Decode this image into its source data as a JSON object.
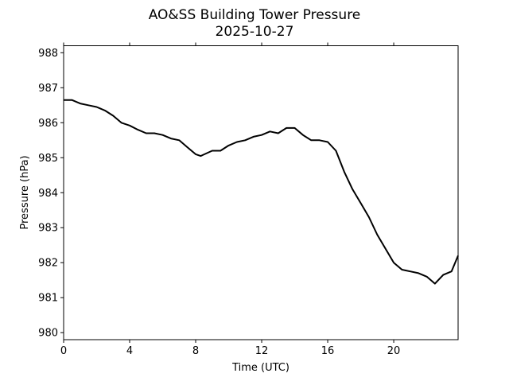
{
  "chart_data": {
    "type": "line",
    "title": "AO&SS Building Tower Pressure",
    "subtitle": "2025-10-27",
    "xlabel": "Time (UTC)",
    "ylabel": "Pressure (hPa)",
    "xlim": [
      0,
      23.9
    ],
    "ylim": [
      979.8,
      988.2
    ],
    "xticks": [
      0,
      4,
      8,
      12,
      16,
      20
    ],
    "yticks": [
      980,
      981,
      982,
      983,
      984,
      985,
      986,
      987,
      988
    ],
    "grid": false,
    "line_color": "#000000",
    "series": [
      {
        "name": "Pressure",
        "x": [
          0,
          0.5,
          1,
          1.5,
          2,
          2.5,
          3,
          3.5,
          4,
          4.5,
          5,
          5.5,
          6,
          6.5,
          7,
          7.5,
          8,
          8.3,
          9,
          9.5,
          10,
          10.5,
          11,
          11.5,
          12,
          12.5,
          13,
          13.5,
          14,
          14.5,
          15,
          15.5,
          16,
          16.5,
          17,
          17.5,
          18,
          18.5,
          19,
          19.5,
          20,
          20.5,
          21,
          21.5,
          22,
          22.5,
          23,
          23.5,
          23.9
        ],
        "y": [
          986.65,
          986.65,
          986.55,
          986.5,
          986.45,
          986.35,
          986.2,
          986.0,
          985.92,
          985.8,
          985.7,
          985.7,
          985.65,
          985.55,
          985.5,
          985.3,
          985.1,
          985.05,
          985.2,
          985.2,
          985.35,
          985.45,
          985.5,
          985.6,
          985.65,
          985.75,
          985.7,
          985.85,
          985.85,
          985.65,
          985.5,
          985.5,
          985.45,
          985.2,
          984.6,
          984.1,
          983.7,
          983.3,
          982.8,
          982.4,
          982.0,
          981.8,
          981.75,
          981.7,
          981.6,
          981.4,
          981.65,
          981.75,
          982.2
        ]
      }
    ]
  }
}
